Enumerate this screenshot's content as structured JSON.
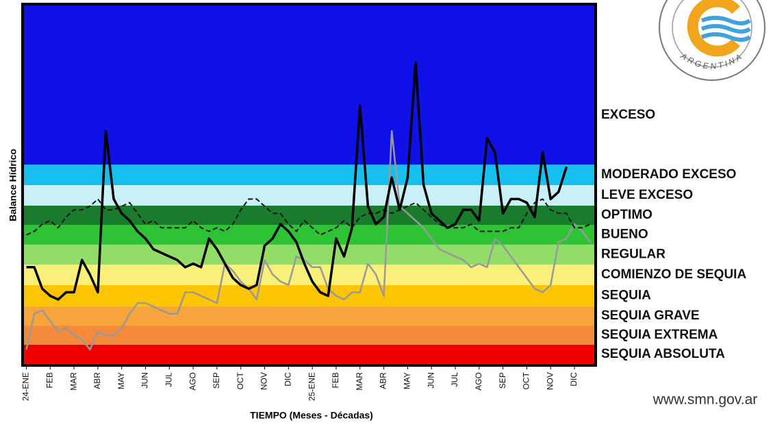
{
  "chart_data": {
    "type": "line",
    "y_label": "Balance Hídrico",
    "x_label": "TIEMPO (Meses - Décadas)",
    "logo_text": "ARGENTINA",
    "website": "www.smn.gov.ar",
    "ylim": [
      0,
      100
    ],
    "xlim": [
      -0.3,
      71.5
    ],
    "bands": [
      {
        "name": "SEQUIA ABSOLUTA",
        "color": "#f20000",
        "from": 0,
        "to": 5.4
      },
      {
        "name": "SEQUIA EXTREMA",
        "color": "#f58a3a",
        "from": 5.4,
        "to": 10.7
      },
      {
        "name": "SEQUIA GRAVE",
        "color": "#f8a43c",
        "from": 10.7,
        "to": 16.1
      },
      {
        "name": "SEQUIA",
        "color": "#fdc400",
        "from": 16.1,
        "to": 22
      },
      {
        "name": "COMIENZO DE SEQUIA",
        "color": "#f8f078",
        "from": 22,
        "to": 27.7
      },
      {
        "name": "REGULAR",
        "color": "#92dc68",
        "from": 27.7,
        "to": 33.3
      },
      {
        "name": "BUENO",
        "color": "#2ec235",
        "from": 33.3,
        "to": 38.8
      },
      {
        "name": "OPTIMO",
        "color": "#187c2c",
        "from": 38.8,
        "to": 44.2
      },
      {
        "name": "LEVE EXCESO",
        "color": "#c9f0f8",
        "from": 44.2,
        "to": 49.9
      },
      {
        "name": "MODERADO EXCESO",
        "color": "#15c0ef",
        "from": 49.9,
        "to": 55.6
      },
      {
        "name": "EXCESO",
        "color": "#1010e8",
        "from": 55.6,
        "to": 100
      }
    ],
    "x": [
      0,
      1,
      2,
      3,
      4,
      5,
      6,
      7,
      8,
      9,
      10,
      11,
      12,
      13,
      14,
      15,
      16,
      17,
      18,
      19,
      20,
      21,
      22,
      23,
      24,
      25,
      26,
      27,
      28,
      29,
      30,
      31,
      32,
      33,
      34,
      35,
      36,
      37,
      38,
      39,
      40,
      41,
      42,
      43,
      44,
      45,
      46,
      47,
      48,
      49,
      50,
      51,
      52,
      53,
      54,
      55,
      56,
      57,
      58,
      59,
      60,
      61,
      62,
      63,
      64,
      65,
      66,
      67,
      68,
      69,
      70,
      71
    ],
    "xticks": [
      {
        "value": 0,
        "label": "24-ENE"
      },
      {
        "value": 3,
        "label": "FEB"
      },
      {
        "value": 6,
        "label": "MAR"
      },
      {
        "value": 9,
        "label": "ABR"
      },
      {
        "value": 12,
        "label": "MAY"
      },
      {
        "value": 15,
        "label": "JUN"
      },
      {
        "value": 18,
        "label": "JUL"
      },
      {
        "value": 21,
        "label": "AGO"
      },
      {
        "value": 24,
        "label": "SEP"
      },
      {
        "value": 27,
        "label": "OCT"
      },
      {
        "value": 30,
        "label": "NOV"
      },
      {
        "value": 33,
        "label": "DIC"
      },
      {
        "value": 36,
        "label": "25-ENE"
      },
      {
        "value": 39,
        "label": "FEB"
      },
      {
        "value": 42,
        "label": "MAR"
      },
      {
        "value": 45,
        "label": "ABR"
      },
      {
        "value": 48,
        "label": "MAY"
      },
      {
        "value": 51,
        "label": "JUN"
      },
      {
        "value": 54,
        "label": "JUL"
      },
      {
        "value": 57,
        "label": "AGO"
      },
      {
        "value": 60,
        "label": "SEP"
      },
      {
        "value": 63,
        "label": "OCT"
      },
      {
        "value": 66,
        "label": "NOV"
      },
      {
        "value": 69,
        "label": "DIC"
      }
    ],
    "series": [
      {
        "color": "#999999",
        "dash": false,
        "width": 2.5,
        "values": [
          4,
          14,
          15,
          12,
          9,
          10,
          8,
          7,
          4,
          9,
          8,
          8,
          10,
          14,
          17,
          17,
          16,
          15,
          14,
          14,
          20,
          20,
          19,
          18,
          17,
          28,
          26,
          23,
          21,
          18,
          29,
          25,
          23,
          22,
          30,
          29,
          27,
          27,
          21,
          19,
          18,
          20,
          20,
          28,
          25,
          19,
          65,
          44,
          42,
          40,
          38,
          35,
          32,
          31,
          30,
          29,
          27,
          28,
          27,
          35,
          33,
          30,
          27,
          24,
          21,
          20,
          22,
          34,
          35,
          39,
          37,
          34
        ]
      },
      {
        "color": "#111111",
        "dash": true,
        "width": 2,
        "values": [
          36,
          37,
          39,
          40,
          38,
          41,
          43,
          43,
          44,
          46,
          43,
          43,
          44,
          45,
          42,
          39,
          40,
          38,
          38,
          38,
          38,
          40,
          38,
          37,
          38,
          37,
          39,
          43,
          46,
          46,
          44,
          42,
          42,
          39,
          37,
          40,
          38,
          36,
          37,
          38,
          40,
          38,
          41,
          42,
          42,
          43,
          42,
          43,
          44,
          45,
          43,
          41,
          39,
          38,
          38,
          38,
          39,
          37,
          37,
          37,
          37,
          38,
          38,
          42,
          45,
          46,
          43,
          42,
          42,
          38,
          38,
          39
        ]
      },
      {
        "color": "#000000",
        "dash": false,
        "width": 3.5,
        "values": [
          27,
          27,
          21,
          19,
          18,
          20,
          20,
          29,
          25,
          20,
          65,
          46,
          42,
          40,
          37,
          35,
          32,
          31,
          30,
          29,
          27,
          28,
          27,
          35,
          32,
          28,
          24,
          22,
          21,
          22,
          33,
          35,
          39,
          37,
          34,
          28,
          23,
          20,
          19,
          35,
          30,
          38,
          72,
          44,
          39,
          41,
          52,
          43,
          52,
          84,
          50,
          42,
          40,
          38,
          39,
          43,
          43,
          40,
          63,
          59,
          42,
          46,
          46,
          45,
          41,
          59,
          46,
          48,
          55,
          null,
          null,
          null
        ]
      }
    ]
  }
}
